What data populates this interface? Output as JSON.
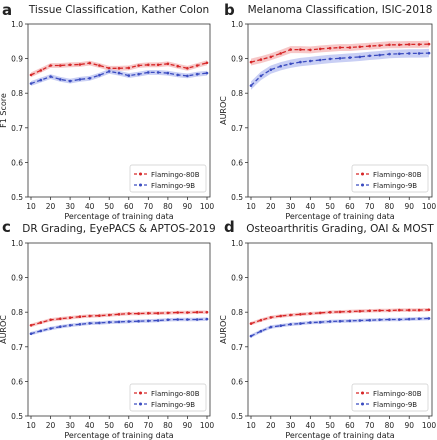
{
  "colors": {
    "red": "#d62728",
    "blue": "#3b4cc0",
    "red_band": "#f4b6b6",
    "blue_band": "#b7bff0"
  },
  "chart_data": [
    {
      "panel_letter": "a",
      "type": "line",
      "title": "Tissue Classification, Kather Colon",
      "xlabel": "Percentage of training data",
      "ylabel": "F1 Score",
      "x": [
        10,
        15,
        20,
        25,
        30,
        35,
        40,
        45,
        50,
        55,
        60,
        65,
        70,
        75,
        80,
        85,
        90,
        95,
        100
      ],
      "xticks": [
        10,
        20,
        30,
        40,
        50,
        60,
        70,
        80,
        90,
        100
      ],
      "ylim": [
        0.5,
        1.0
      ],
      "yticks": [
        "0.5",
        "0.6",
        "0.7",
        "0.8",
        "0.9",
        "1.0"
      ],
      "legend_position": "bottom-right",
      "grid": false,
      "series": [
        {
          "name": "Flamingo-80B",
          "color": "red",
          "values": [
            0.853,
            0.866,
            0.88,
            0.88,
            0.882,
            0.883,
            0.887,
            0.88,
            0.872,
            0.872,
            0.873,
            0.88,
            0.882,
            0.882,
            0.885,
            0.878,
            0.872,
            0.88,
            0.888
          ],
          "band": 0.007
        },
        {
          "name": "Flamingo-9B",
          "color": "blue",
          "values": [
            0.828,
            0.838,
            0.848,
            0.84,
            0.835,
            0.84,
            0.843,
            0.852,
            0.863,
            0.858,
            0.851,
            0.855,
            0.86,
            0.86,
            0.858,
            0.853,
            0.85,
            0.855,
            0.858
          ],
          "band": 0.007
        }
      ]
    },
    {
      "panel_letter": "b",
      "type": "line",
      "title": "Melanoma Classification, ISIC-2018",
      "xlabel": "Percentage of training data",
      "ylabel": "AUROC",
      "x": [
        10,
        15,
        20,
        25,
        30,
        35,
        40,
        45,
        50,
        55,
        60,
        65,
        70,
        75,
        80,
        85,
        90,
        95,
        100
      ],
      "xticks": [
        10,
        20,
        30,
        40,
        50,
        60,
        70,
        80,
        90,
        100
      ],
      "ylim": [
        0.5,
        1.0
      ],
      "yticks": [
        "0.5",
        "0.6",
        "0.7",
        "0.8",
        "0.9",
        "1.0"
      ],
      "legend_position": "bottom-right",
      "grid": false,
      "series": [
        {
          "name": "Flamingo-80B",
          "color": "red",
          "values": [
            0.89,
            0.897,
            0.905,
            0.915,
            0.926,
            0.926,
            0.925,
            0.928,
            0.93,
            0.932,
            0.932,
            0.934,
            0.936,
            0.938,
            0.94,
            0.94,
            0.941,
            0.941,
            0.942
          ],
          "band": 0.01
        },
        {
          "name": "Flamingo-9B",
          "color": "blue",
          "values": [
            0.822,
            0.85,
            0.868,
            0.878,
            0.885,
            0.89,
            0.893,
            0.896,
            0.899,
            0.901,
            0.903,
            0.905,
            0.908,
            0.91,
            0.913,
            0.914,
            0.915,
            0.915,
            0.916
          ],
          "band": 0.012
        }
      ]
    },
    {
      "panel_letter": "c",
      "type": "line",
      "title": "DR Grading, EyePACS & APTOS-2019",
      "xlabel": "Percentage of training data",
      "ylabel": "AUROC",
      "x": [
        10,
        15,
        20,
        25,
        30,
        35,
        40,
        45,
        50,
        55,
        60,
        65,
        70,
        75,
        80,
        85,
        90,
        95,
        100
      ],
      "xticks": [
        10,
        20,
        30,
        40,
        50,
        60,
        70,
        80,
        90,
        100
      ],
      "ylim": [
        0.5,
        1.0
      ],
      "yticks": [
        "0.5",
        "0.6",
        "0.7",
        "0.8",
        "0.9",
        "1.0"
      ],
      "legend_position": "bottom-right",
      "grid": false,
      "series": [
        {
          "name": "Flamingo-80B",
          "color": "red",
          "values": [
            0.762,
            0.77,
            0.778,
            0.781,
            0.784,
            0.787,
            0.789,
            0.79,
            0.792,
            0.794,
            0.796,
            0.796,
            0.797,
            0.797,
            0.798,
            0.799,
            0.799,
            0.8,
            0.8
          ],
          "band": 0.005
        },
        {
          "name": "Flamingo-9B",
          "color": "blue",
          "values": [
            0.738,
            0.746,
            0.753,
            0.758,
            0.762,
            0.765,
            0.768,
            0.769,
            0.771,
            0.772,
            0.773,
            0.774,
            0.775,
            0.776,
            0.778,
            0.779,
            0.779,
            0.779,
            0.78
          ],
          "band": 0.005
        }
      ]
    },
    {
      "panel_letter": "d",
      "type": "line",
      "title": "Osteoarthritis Grading, OAI & MOST",
      "xlabel": "Percentage of training data",
      "ylabel": "AUROC",
      "x": [
        10,
        15,
        20,
        25,
        30,
        35,
        40,
        45,
        50,
        55,
        60,
        65,
        70,
        75,
        80,
        85,
        90,
        95,
        100
      ],
      "xticks": [
        10,
        20,
        30,
        40,
        50,
        60,
        70,
        80,
        90,
        100
      ],
      "ylim": [
        0.5,
        1.0
      ],
      "yticks": [
        "0.5",
        "0.6",
        "0.7",
        "0.8",
        "0.9",
        "1.0"
      ],
      "legend_position": "bottom-right",
      "grid": false,
      "series": [
        {
          "name": "Flamingo-80B",
          "color": "red",
          "values": [
            0.767,
            0.777,
            0.785,
            0.789,
            0.792,
            0.794,
            0.796,
            0.798,
            0.8,
            0.801,
            0.802,
            0.803,
            0.804,
            0.805,
            0.805,
            0.806,
            0.806,
            0.806,
            0.807
          ],
          "band": 0.005
        },
        {
          "name": "Flamingo-9B",
          "color": "blue",
          "values": [
            0.731,
            0.745,
            0.757,
            0.761,
            0.765,
            0.767,
            0.77,
            0.771,
            0.773,
            0.774,
            0.775,
            0.776,
            0.777,
            0.778,
            0.779,
            0.779,
            0.78,
            0.781,
            0.782
          ],
          "band": 0.005
        }
      ]
    }
  ]
}
